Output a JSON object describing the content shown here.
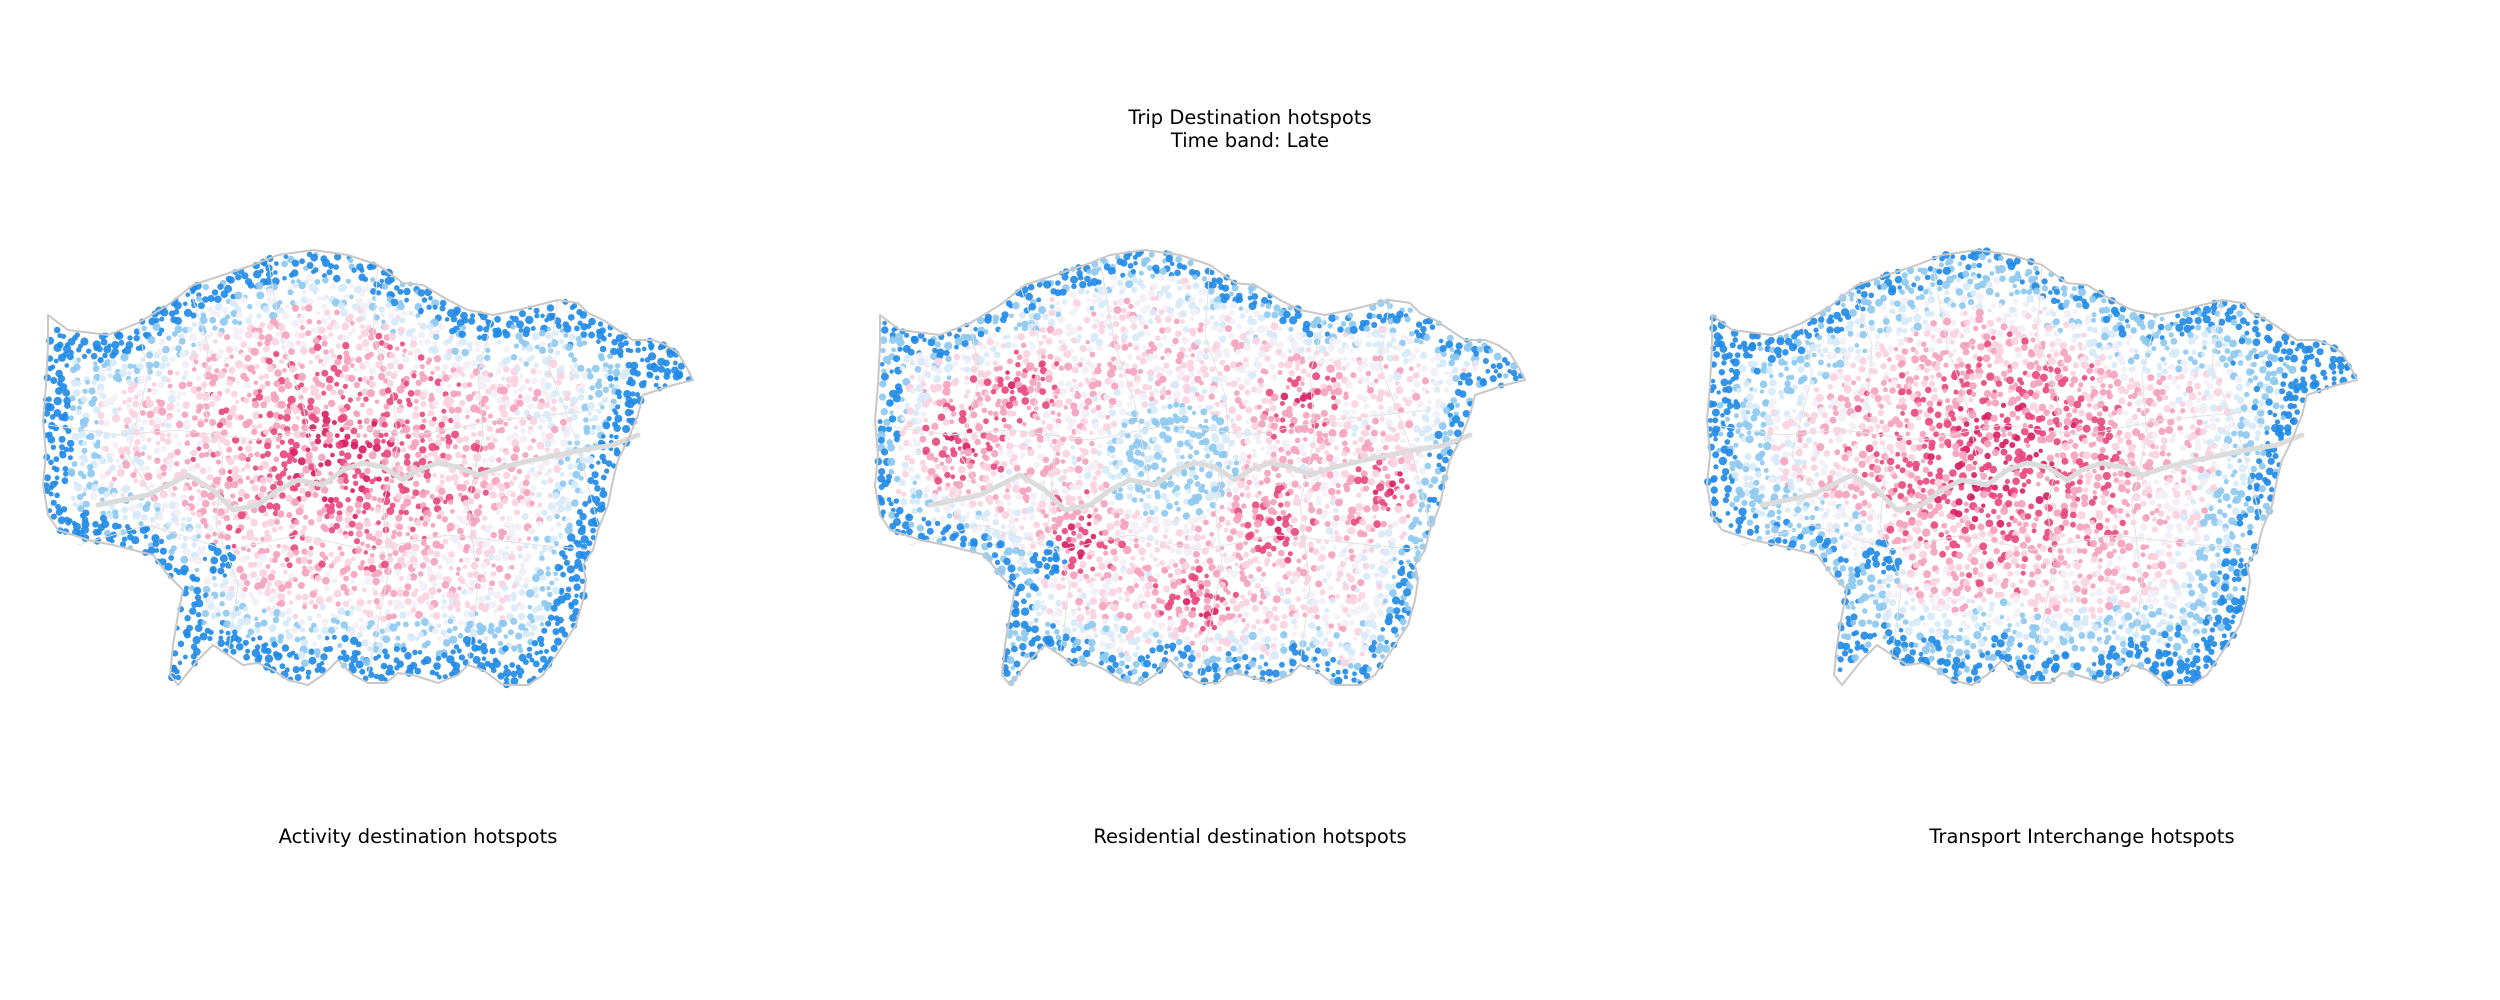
{
  "figure": {
    "title_line1": "Trip Destination hotspots",
    "title_line2": "Time band: Late"
  },
  "panels": [
    {
      "label": "Activity destination hotspots",
      "profile": "central"
    },
    {
      "label": "Residential destination hotspots",
      "profile": "outer"
    },
    {
      "label": "Transport Interchange hotspots",
      "profile": "core"
    }
  ],
  "colors": {
    "boundary": "#c8c8c8",
    "thames": "#dcdcdc",
    "cold_strong": "#1e88e5",
    "cold_light": "#8cc8f0",
    "cold_faint": "#d6eafa",
    "neutral": "#f3eef6",
    "hot_faint": "#fbd2df",
    "hot_light": "#f5a0bc",
    "hot_strong": "#e8457d",
    "hot_dark": "#d81b60"
  }
}
